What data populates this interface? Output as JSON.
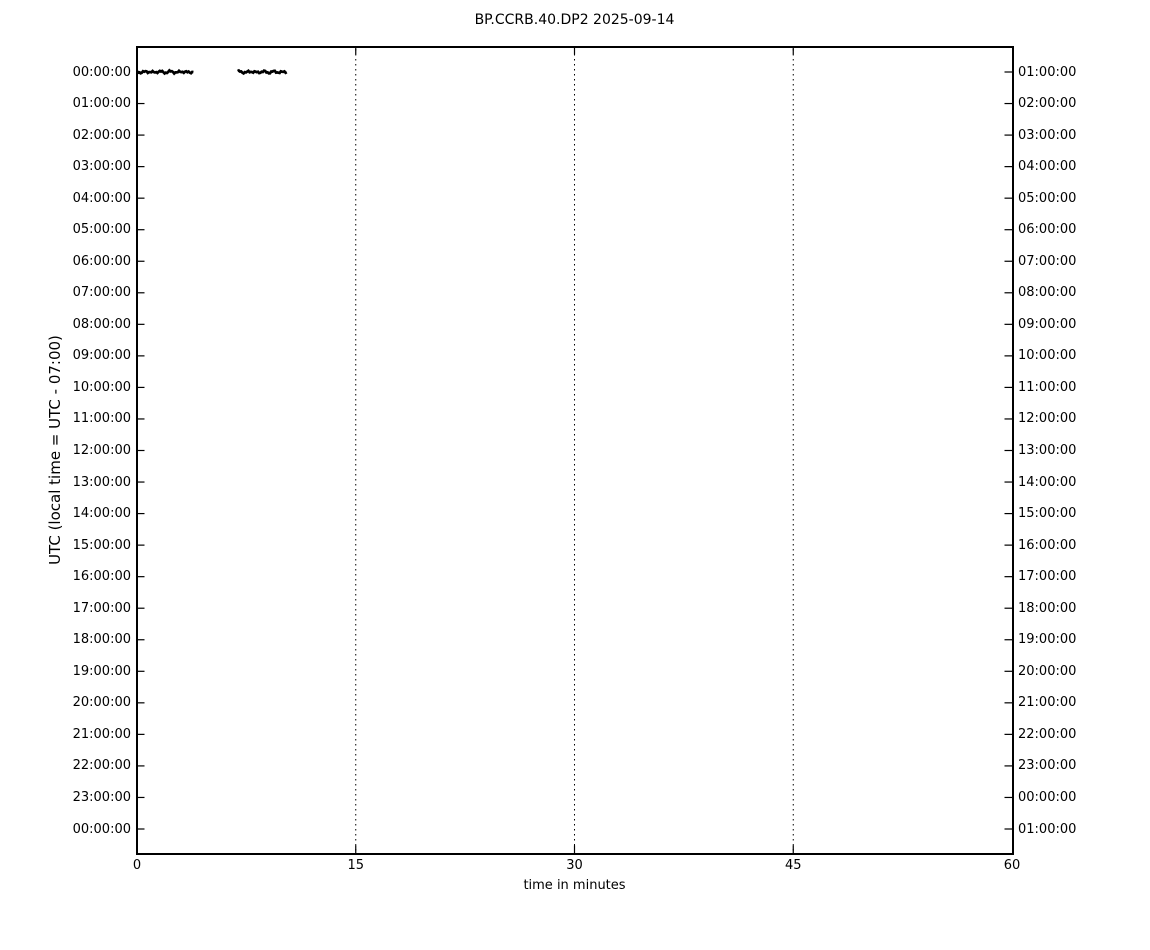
{
  "chart_data": {
    "type": "line",
    "subtype": "helicorder_dayplot",
    "title": "BP.CCRB.40.DP2 2025-09-14",
    "xlabel": "time in minutes",
    "ylabel": "UTC (local time = UTC - 07:00)",
    "xlim": [
      0,
      60
    ],
    "x_ticks": [
      0,
      15,
      30,
      45,
      60
    ],
    "x_tick_labels": [
      "0",
      "15",
      "30",
      "45",
      "60"
    ],
    "grid": {
      "vertical_dotted_minutes": [
        15,
        30,
        45
      ],
      "horizontal": false
    },
    "row_count": 25,
    "minutes_per_row": 60,
    "left_axis_time_labels": [
      "00:00:00",
      "01:00:00",
      "02:00:00",
      "03:00:00",
      "04:00:00",
      "05:00:00",
      "06:00:00",
      "07:00:00",
      "08:00:00",
      "09:00:00",
      "10:00:00",
      "11:00:00",
      "12:00:00",
      "13:00:00",
      "14:00:00",
      "15:00:00",
      "16:00:00",
      "17:00:00",
      "18:00:00",
      "19:00:00",
      "20:00:00",
      "21:00:00",
      "22:00:00",
      "23:00:00",
      "00:00:00"
    ],
    "right_axis_time_labels": [
      "01:00:00",
      "02:00:00",
      "03:00:00",
      "04:00:00",
      "05:00:00",
      "06:00:00",
      "07:00:00",
      "08:00:00",
      "09:00:00",
      "10:00:00",
      "11:00:00",
      "12:00:00",
      "13:00:00",
      "14:00:00",
      "15:00:00",
      "16:00:00",
      "17:00:00",
      "18:00:00",
      "19:00:00",
      "20:00:00",
      "21:00:00",
      "22:00:00",
      "23:00:00",
      "00:00:00",
      "01:00:00"
    ],
    "series": [
      {
        "name": "BP.CCRB.40.DP2",
        "row_index": 0,
        "row_start_utc": "00:00:00",
        "segments_minutes": [
          [
            0.0,
            3.9
          ],
          [
            6.9,
            10.3
          ]
        ],
        "amplitude": "near-zero flat trace",
        "color": "#000000"
      }
    ],
    "background": "#ffffff",
    "foreground": "#000000"
  }
}
